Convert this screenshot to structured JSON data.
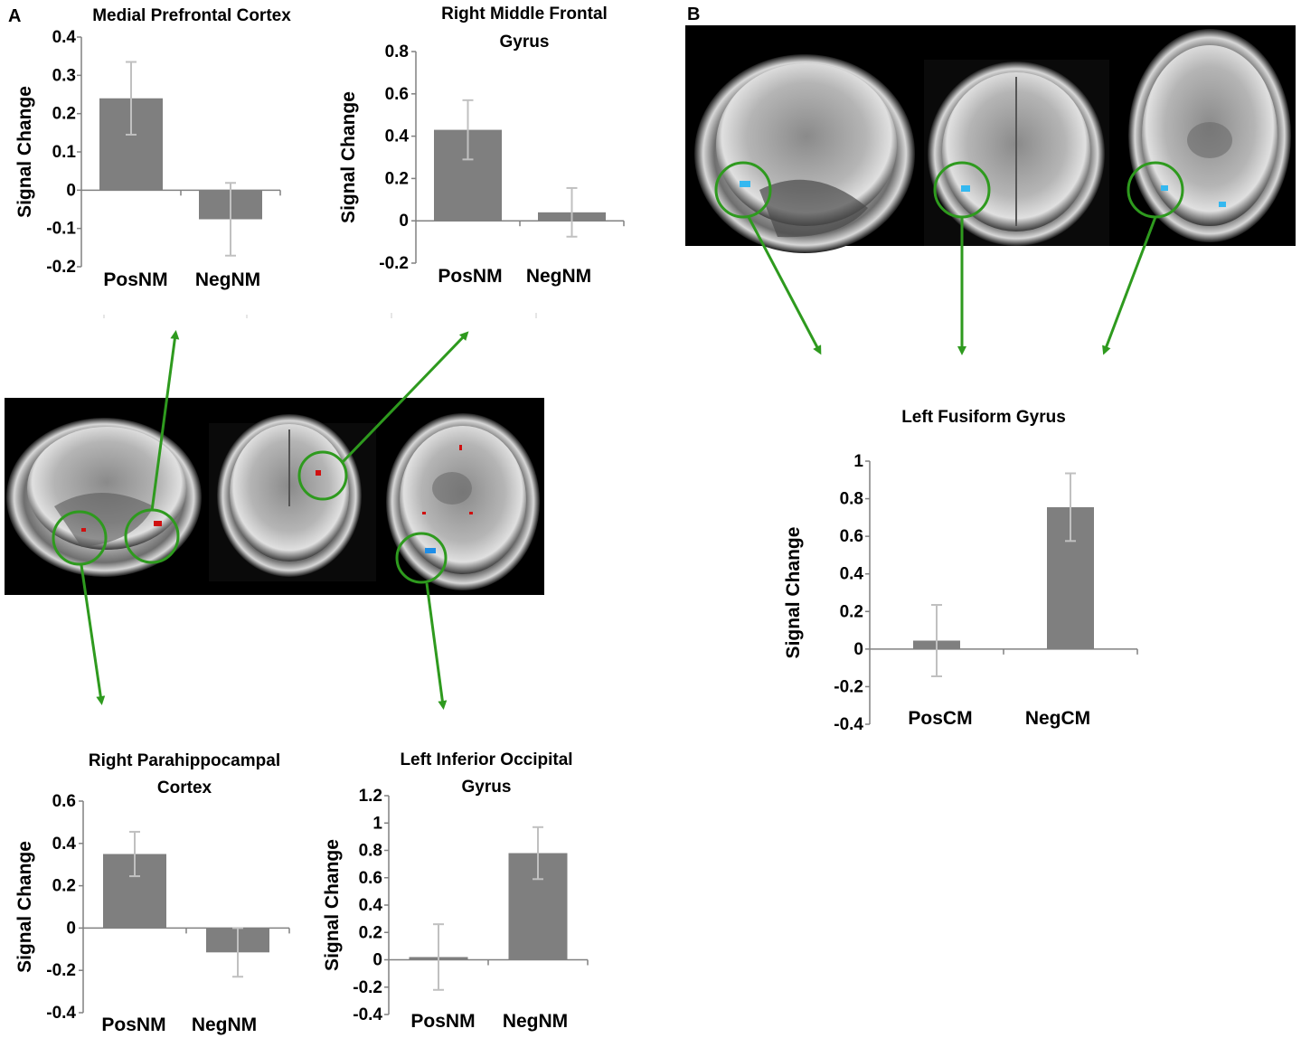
{
  "panel_labels": {
    "a": "A",
    "b": "B"
  },
  "colors": {
    "bar": "#7f7f7f",
    "error_bar": "#c0c0c0",
    "arrow": "#2e9a1e",
    "circle": "#2e9a1e",
    "brain_background": "#000000",
    "activation_positive": "#d01010",
    "activation_negative": "#1e8ee8"
  },
  "chart_data": [
    {
      "type": "bar",
      "title": "Medial Prefrontal Cortex",
      "categories": [
        "PosNM",
        "NegNM"
      ],
      "values": [
        0.24,
        -0.076
      ],
      "errors": [
        0.095,
        0.095
      ],
      "ylabel": "Signal Change",
      "ylim": [
        -0.2,
        0.4
      ],
      "yticks": [
        "0.4",
        "0.3",
        "0.2",
        "0.1",
        "0",
        "-0.1",
        "-0.2"
      ]
    },
    {
      "type": "bar",
      "title": "Right Middle Frontal Gyrus",
      "categories": [
        "PosNM",
        "NegNM"
      ],
      "values": [
        0.43,
        0.04
      ],
      "errors": [
        0.14,
        0.115
      ],
      "ylabel": "Signal Change",
      "ylim": [
        -0.2,
        0.8
      ],
      "yticks": [
        "0.8",
        "0.6",
        "0.4",
        "0.2",
        "0",
        "-0.2"
      ]
    },
    {
      "type": "bar",
      "title": "Right Parahippocampal Cortex",
      "categories": [
        "PosNM",
        "NegNM"
      ],
      "values": [
        0.35,
        -0.115
      ],
      "errors": [
        0.105,
        0.115
      ],
      "ylabel": "Signal Change",
      "ylim": [
        -0.4,
        0.6
      ],
      "yticks": [
        "0.6",
        "0.4",
        "0.2",
        "0",
        "-0.2",
        "-0.4"
      ]
    },
    {
      "type": "bar",
      "title": "Left Inferior Occipital Gyrus",
      "categories": [
        "PosNM",
        "NegNM"
      ],
      "values": [
        0.02,
        0.78
      ],
      "errors": [
        0.24,
        0.19
      ],
      "ylabel": "Signal Change",
      "ylim": [
        -0.4,
        1.2
      ],
      "yticks": [
        "1.2",
        "1",
        "0.8",
        "0.6",
        "0.4",
        "0.2",
        "0",
        "-0.2",
        "-0.4"
      ]
    },
    {
      "type": "bar",
      "title": "Left Fusiform Gyrus",
      "categories": [
        "PosCM",
        "NegCM"
      ],
      "values": [
        0.045,
        0.755
      ],
      "errors": [
        0.19,
        0.18
      ],
      "ylabel": "Signal Change",
      "ylim": [
        -0.4,
        1.0
      ],
      "yticks": [
        "1",
        "0.8",
        "0.6",
        "0.4",
        "0.2",
        "0",
        "-0.2",
        "-0.4"
      ]
    }
  ]
}
